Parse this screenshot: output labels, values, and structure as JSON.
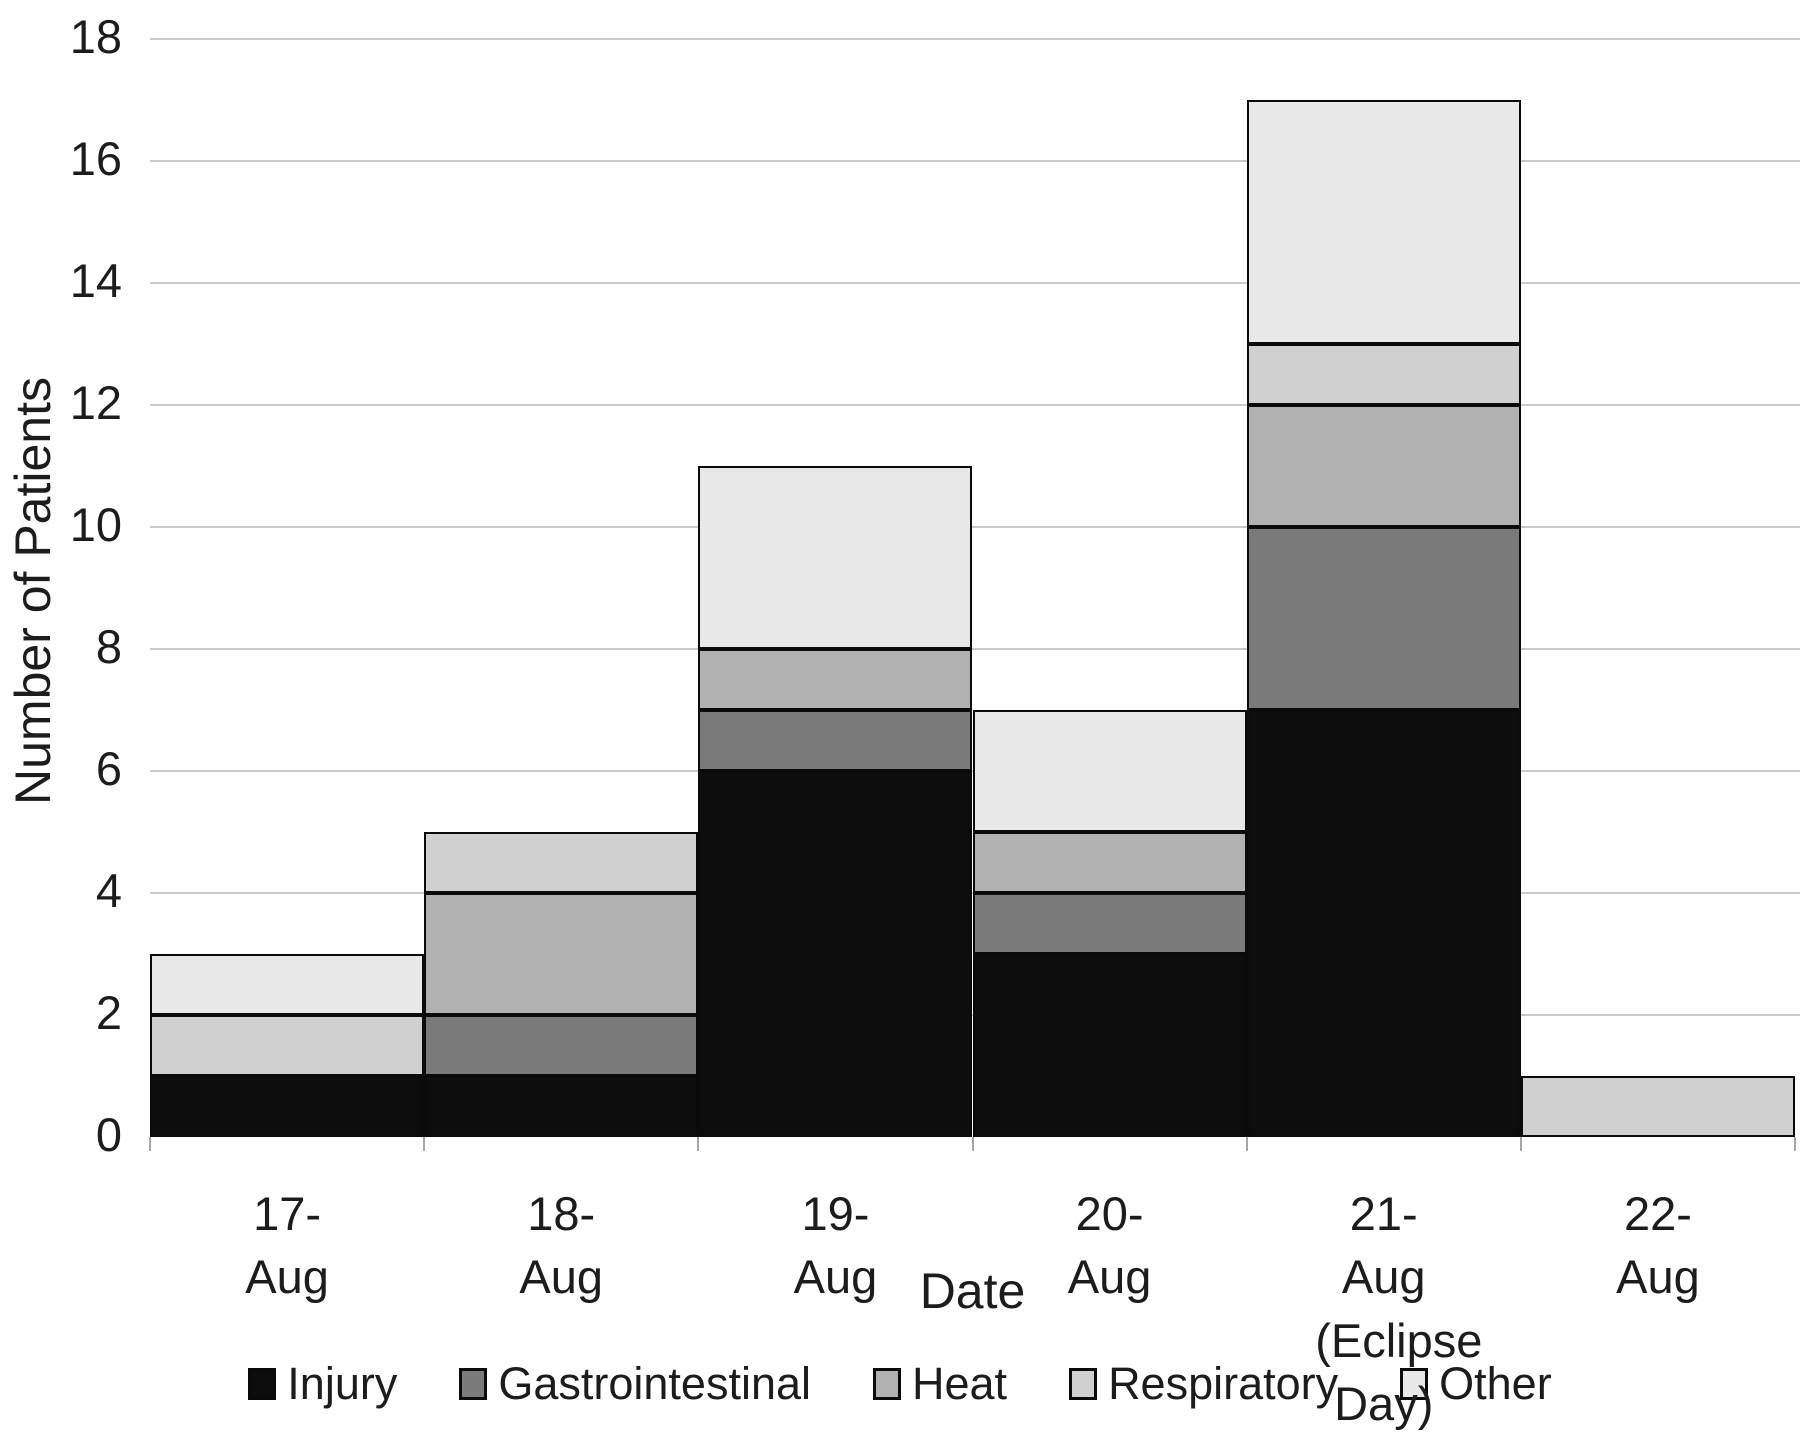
{
  "chart_data": {
    "type": "bar",
    "stacked": true,
    "categories": [
      "17-Aug",
      "18-Aug",
      "19-Aug",
      "20-Aug",
      "21-Aug\n(Eclipse Day)",
      "22-Aug"
    ],
    "series": [
      {
        "name": "Injury",
        "color": "#0d0d0d",
        "values": [
          1,
          1,
          6,
          3,
          7,
          0
        ]
      },
      {
        "name": "Gastrointestinal",
        "color": "#7a7a7a",
        "values": [
          0,
          1,
          1,
          1,
          3,
          0
        ]
      },
      {
        "name": "Heat",
        "color": "#b1b1b1",
        "values": [
          0,
          2,
          1,
          1,
          2,
          0
        ]
      },
      {
        "name": "Respiratory",
        "color": "#d0d0d0",
        "values": [
          1,
          1,
          0,
          0,
          1,
          1
        ]
      },
      {
        "name": "Other",
        "color": "#e8e8e8",
        "values": [
          1,
          0,
          3,
          2,
          4,
          0
        ]
      }
    ],
    "xlabel": "Date",
    "ylabel": "Number of Patients",
    "ylim": [
      0,
      18
    ],
    "ytick_step": 2,
    "grid": true,
    "legend_position": "bottom",
    "bar_border_color": "#0a0a0a",
    "gridline_color": "#c9c9c9",
    "text_color": "#1c1c1c"
  }
}
